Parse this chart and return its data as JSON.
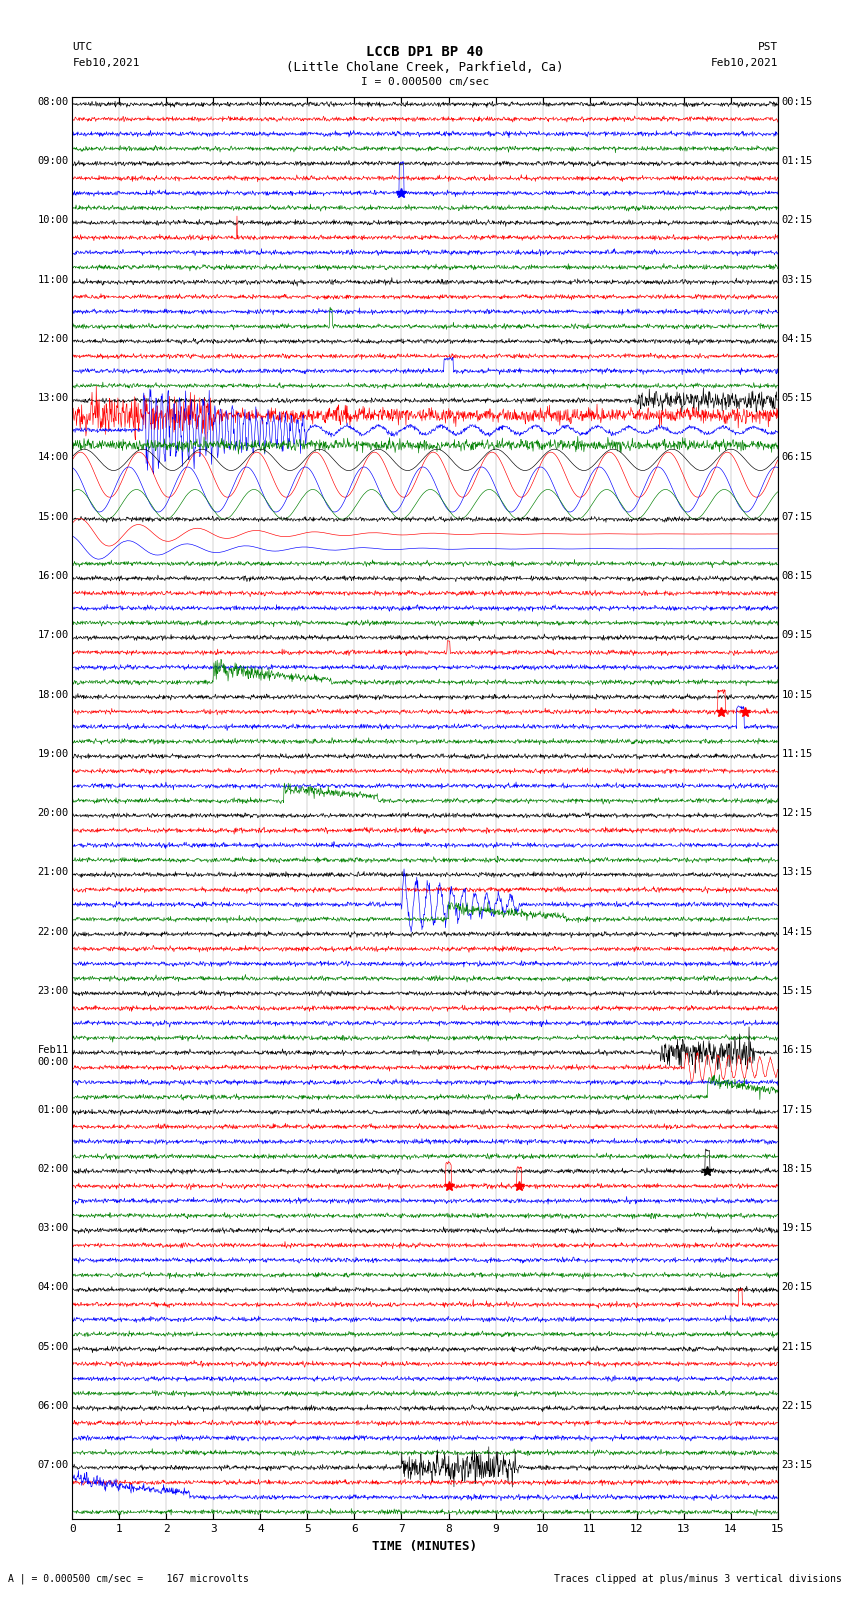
{
  "title_line1": "LCCB DP1 BP 40",
  "title_line2": "(Little Cholane Creek, Parkfield, Ca)",
  "scale_label": "I = 0.000500 cm/sec",
  "left_header": "UTC",
  "left_date": "Feb10,2021",
  "right_header": "PST",
  "right_date": "Feb10,2021",
  "xlabel": "TIME (MINUTES)",
  "bottom_left_note": "A | = 0.000500 cm/sec =    167 microvolts",
  "bottom_right_note": "Traces clipped at plus/minus 3 vertical divisions",
  "xlim": [
    0,
    15
  ],
  "xticks": [
    0,
    1,
    2,
    3,
    4,
    5,
    6,
    7,
    8,
    9,
    10,
    11,
    12,
    13,
    14,
    15
  ],
  "colors": [
    "black",
    "red",
    "blue",
    "green"
  ],
  "num_hours": 24,
  "left_times": [
    "08:00",
    "09:00",
    "10:00",
    "11:00",
    "12:00",
    "13:00",
    "14:00",
    "15:00",
    "16:00",
    "17:00",
    "18:00",
    "19:00",
    "20:00",
    "21:00",
    "22:00",
    "23:00",
    "Feb11\n00:00",
    "01:00",
    "02:00",
    "03:00",
    "04:00",
    "05:00",
    "06:00",
    "07:00"
  ],
  "right_times": [
    "00:15",
    "01:15",
    "02:15",
    "03:15",
    "04:15",
    "05:15",
    "06:15",
    "07:15",
    "08:15",
    "09:15",
    "10:15",
    "11:15",
    "12:15",
    "13:15",
    "14:15",
    "15:15",
    "16:15",
    "17:15",
    "18:15",
    "19:15",
    "20:15",
    "21:15",
    "22:15",
    "23:15"
  ],
  "fig_width": 8.5,
  "fig_height": 16.13,
  "dpi": 100,
  "background_color": "#ffffff",
  "noise_scale": 0.018,
  "seed": 42
}
